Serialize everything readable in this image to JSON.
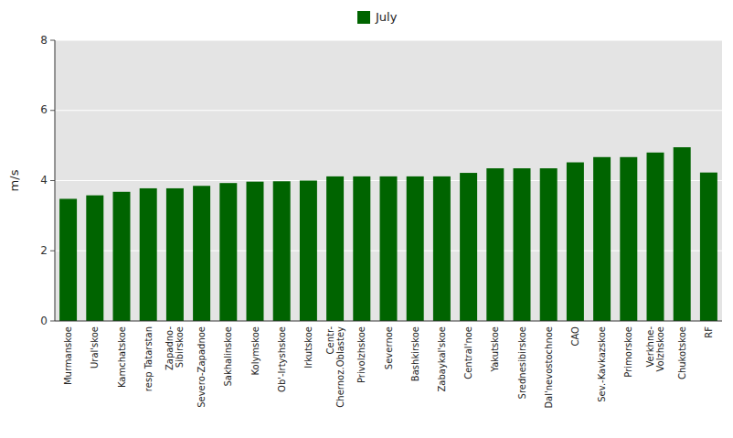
{
  "chart_data": {
    "type": "bar",
    "y_label": "m/s",
    "categories": [
      "Murmanskoe",
      "Ural'skoe",
      "Kamchatskoe",
      "resp Tatarstan",
      "Zapadno-\nSibirskoe",
      "Severo-Zapadnoe",
      "Sakhalinskoe",
      "Kolymskoe",
      "Ob'-Irtyshskoe",
      "Irkutskoe",
      "Centr-\nChernoz.Oblastey",
      "Privolzhskoe",
      "Severnoe",
      "Bashkirskoe",
      "Zabaykal'skoe",
      "Central'noe",
      "Yakutskoe",
      "Srednesibirskoe",
      "Dal'nevostochnoe",
      "CAO",
      "Sev.-Kavkazskoe",
      "Primorskoe",
      "Verkhne-\nVolzhskoe",
      "Chukotskoe",
      "RF"
    ],
    "series": [
      {
        "name": "July",
        "color": "#006400",
        "values": [
          3.48,
          3.58,
          3.68,
          3.78,
          3.78,
          3.85,
          3.93,
          3.97,
          3.98,
          4.0,
          4.12,
          4.12,
          4.12,
          4.12,
          4.12,
          4.22,
          4.35,
          4.35,
          4.35,
          4.52,
          4.67,
          4.67,
          4.8,
          4.95,
          4.23
        ]
      }
    ],
    "ylim": [
      0,
      8
    ],
    "yticks": [
      0,
      2,
      4,
      6,
      8
    ],
    "grid": true,
    "legend": "top"
  }
}
